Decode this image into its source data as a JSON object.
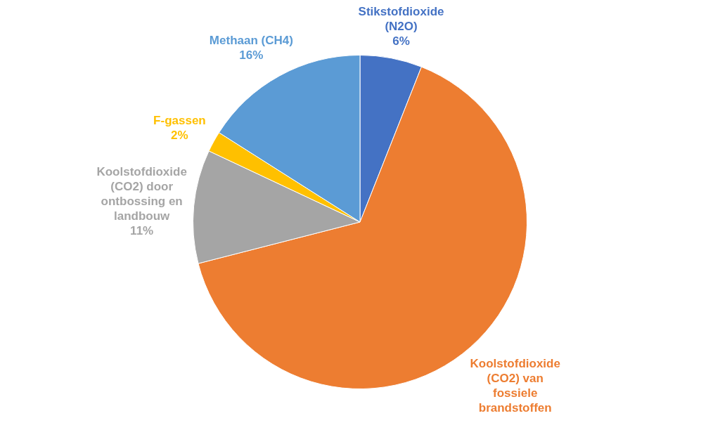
{
  "chart_data": {
    "type": "pie",
    "categories": [
      "Stikstofdioxide (N2O)",
      "Koolstofdioxide (CO2) van fossiele brandstoffen",
      "Koolstofdioxide (CO2) door ontbossing en landbouw",
      "F-gassen",
      "Methaan (CH4)"
    ],
    "values": [
      6,
      65,
      11,
      2,
      16
    ],
    "colors": [
      "#4472c4",
      "#ed7d31",
      "#a5a5a5",
      "#ffc000",
      "#5b9bd5"
    ],
    "value_labels": [
      "6%",
      null,
      "11%",
      "2%",
      "16%"
    ],
    "legend": false
  }
}
